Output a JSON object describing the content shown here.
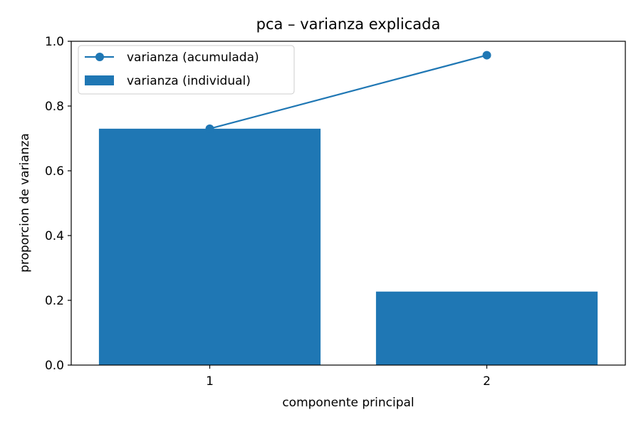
{
  "chart_data": {
    "type": "bar",
    "title": "pca – varianza explicada",
    "xlabel": "componente principal",
    "ylabel": "proporcion de varianza",
    "categories": [
      "1",
      "2"
    ],
    "ylim": [
      0,
      1.0
    ],
    "yticks": [
      "0.0",
      "0.2",
      "0.4",
      "0.6",
      "0.8",
      "1.0"
    ],
    "series": [
      {
        "name": "varianza (individual)",
        "kind": "bar",
        "values": [
          0.73,
          0.227
        ],
        "color": "#1f77b4"
      },
      {
        "name": "varianza (acumulada)",
        "kind": "line",
        "marker": "circle",
        "values": [
          0.73,
          0.957
        ],
        "color": "#1f77b4"
      }
    ],
    "legend": {
      "placement": "top-left",
      "entries": [
        "varianza (acumulada)",
        "varianza (individual)"
      ]
    },
    "grid": false
  }
}
